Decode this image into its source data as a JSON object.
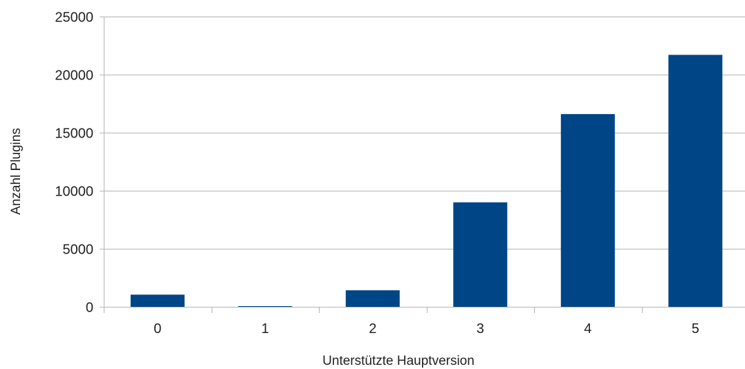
{
  "chart_data": {
    "type": "bar",
    "title": "",
    "xlabel": "Unterstützte Hauptversion",
    "ylabel": "Anzahl Plugins",
    "categories": [
      "0",
      "1",
      "2",
      "3",
      "4",
      "5"
    ],
    "series": [
      {
        "values": [
          1050,
          20,
          1420,
          9000,
          16600,
          21700
        ],
        "color": "#004586"
      }
    ],
    "ylim": [
      0,
      25000
    ],
    "yticks": [
      0,
      5000,
      10000,
      15000,
      20000,
      25000
    ],
    "ytick_labels": [
      "0",
      "5000",
      "10000",
      "15000",
      "20000",
      "25000"
    ],
    "grid": true,
    "legend": "none",
    "colors": {
      "bar": "#004586",
      "grid": "#b3b3b3",
      "axis": "#b3b3b3"
    }
  }
}
